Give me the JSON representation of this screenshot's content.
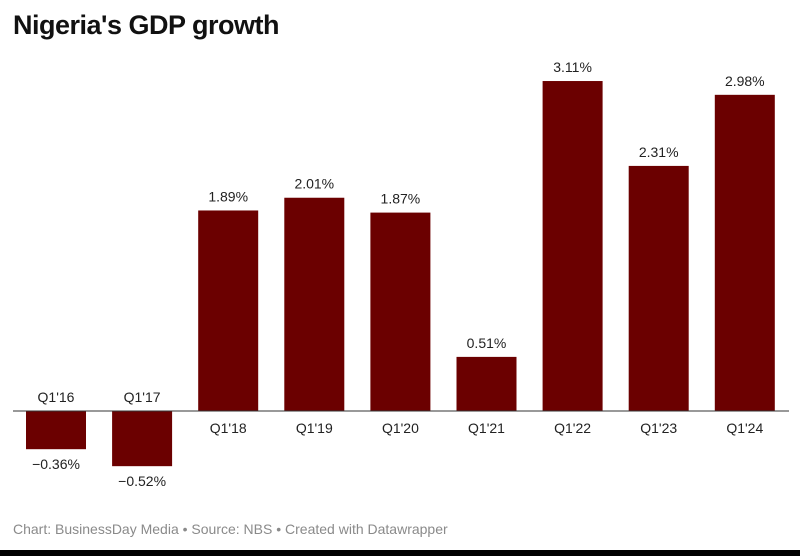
{
  "chart_data": {
    "type": "bar",
    "title": "Nigeria's GDP growth",
    "categories": [
      "Q1'16",
      "Q1'17",
      "Q1'18",
      "Q1'19",
      "Q1'20",
      "Q1'21",
      "Q1'22",
      "Q1'23",
      "Q1'24"
    ],
    "values": [
      -0.36,
      -0.52,
      1.89,
      2.01,
      1.87,
      0.51,
      3.11,
      2.31,
      2.98
    ],
    "labels": [
      "−0.36%",
      "−0.52%",
      "1.89%",
      "2.01%",
      "1.87%",
      "0.51%",
      "3.11%",
      "2.31%",
      "2.98%"
    ],
    "xlabel": "",
    "ylabel": "",
    "grid": false,
    "bar_color": "#6b0000"
  },
  "footer": "Chart: BusinessDay Media • Source: NBS • Created with Datawrapper"
}
